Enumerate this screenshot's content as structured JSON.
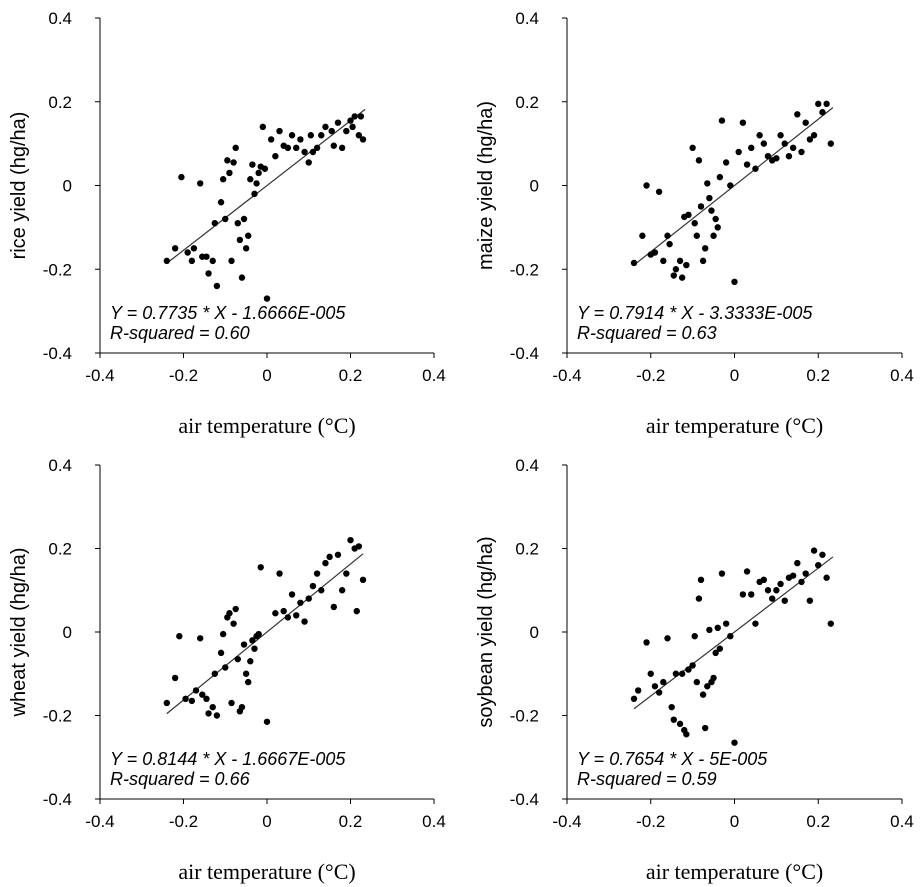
{
  "chart_data": [
    {
      "type": "scatter",
      "title": "",
      "xlabel": "air temperature (°C)",
      "ylabel": "rice yield (hg/ha)",
      "xlim": [
        -0.4,
        0.4
      ],
      "ylim": [
        -0.4,
        0.4
      ],
      "xticks": [
        "-0.4",
        "-0.2",
        "0",
        "0.2",
        "0.4"
      ],
      "yticks": [
        "0.4",
        "0.2",
        "0",
        "-0.2",
        "-0.4"
      ],
      "equation": "Y = 0.7735 * X - 1.6666E-005",
      "r_squared": "R-squared = 0.60",
      "fit": {
        "slope": 0.7735,
        "intercept": -1.6666e-05,
        "x_range": [
          -0.24,
          0.235
        ]
      },
      "points": [
        [
          -0.24,
          -0.18
        ],
        [
          -0.22,
          -0.15
        ],
        [
          -0.205,
          0.02
        ],
        [
          -0.19,
          -0.16
        ],
        [
          -0.18,
          -0.18
        ],
        [
          -0.175,
          -0.15
        ],
        [
          -0.16,
          0.005
        ],
        [
          -0.155,
          -0.17
        ],
        [
          -0.145,
          -0.17
        ],
        [
          -0.14,
          -0.21
        ],
        [
          -0.13,
          -0.18
        ],
        [
          -0.125,
          -0.09
        ],
        [
          -0.12,
          -0.24
        ],
        [
          -0.11,
          -0.04
        ],
        [
          -0.105,
          0.015
        ],
        [
          -0.1,
          -0.08
        ],
        [
          -0.095,
          0.06
        ],
        [
          -0.09,
          0.03
        ],
        [
          -0.085,
          -0.18
        ],
        [
          -0.08,
          0.055
        ],
        [
          -0.075,
          0.09
        ],
        [
          -0.07,
          -0.09
        ],
        [
          -0.065,
          -0.13
        ],
        [
          -0.06,
          -0.22
        ],
        [
          -0.055,
          -0.08
        ],
        [
          -0.05,
          -0.15
        ],
        [
          -0.045,
          -0.12
        ],
        [
          -0.04,
          0.015
        ],
        [
          -0.035,
          0.05
        ],
        [
          -0.03,
          -0.02
        ],
        [
          -0.025,
          0.005
        ],
        [
          -0.02,
          0.03
        ],
        [
          -0.015,
          0.045
        ],
        [
          -0.01,
          0.14
        ],
        [
          -0.005,
          0.04
        ],
        [
          0.0,
          -0.27
        ],
        [
          0.01,
          0.11
        ],
        [
          0.02,
          0.07
        ],
        [
          0.03,
          0.13
        ],
        [
          0.04,
          0.095
        ],
        [
          0.05,
          0.09
        ],
        [
          0.06,
          0.12
        ],
        [
          0.07,
          0.09
        ],
        [
          0.08,
          0.11
        ],
        [
          0.09,
          0.08
        ],
        [
          0.1,
          0.055
        ],
        [
          0.105,
          0.12
        ],
        [
          0.11,
          0.08
        ],
        [
          0.12,
          0.09
        ],
        [
          0.13,
          0.12
        ],
        [
          0.14,
          0.14
        ],
        [
          0.155,
          0.13
        ],
        [
          0.16,
          0.095
        ],
        [
          0.17,
          0.15
        ],
        [
          0.18,
          0.09
        ],
        [
          0.19,
          0.13
        ],
        [
          0.2,
          0.155
        ],
        [
          0.205,
          0.14
        ],
        [
          0.21,
          0.165
        ],
        [
          0.22,
          0.12
        ],
        [
          0.225,
          0.165
        ],
        [
          0.23,
          0.11
        ]
      ]
    },
    {
      "type": "scatter",
      "title": "",
      "xlabel": "air temperature (°C)",
      "ylabel": "maize yield (hg/ha)",
      "xlim": [
        -0.4,
        0.4
      ],
      "ylim": [
        -0.4,
        0.4
      ],
      "xticks": [
        "-0.4",
        "-0.2",
        "0",
        "0.2",
        "0.4"
      ],
      "yticks": [
        "0.4",
        "0.2",
        "0",
        "-0.2",
        "-0.4"
      ],
      "equation": "Y = 0.7914 * X - 3.3333E-005",
      "r_squared": "R-squared = 0.63",
      "fit": {
        "slope": 0.7914,
        "intercept": -3.3333e-05,
        "x_range": [
          -0.24,
          0.235
        ]
      },
      "points": [
        [
          -0.24,
          -0.185
        ],
        [
          -0.22,
          -0.12
        ],
        [
          -0.21,
          0.0
        ],
        [
          -0.2,
          -0.165
        ],
        [
          -0.19,
          -0.16
        ],
        [
          -0.18,
          -0.015
        ],
        [
          -0.17,
          -0.18
        ],
        [
          -0.16,
          -0.12
        ],
        [
          -0.155,
          -0.14
        ],
        [
          -0.145,
          -0.215
        ],
        [
          -0.14,
          -0.2
        ],
        [
          -0.13,
          -0.18
        ],
        [
          -0.125,
          -0.22
        ],
        [
          -0.12,
          -0.075
        ],
        [
          -0.115,
          -0.19
        ],
        [
          -0.11,
          -0.07
        ],
        [
          -0.1,
          0.09
        ],
        [
          -0.095,
          -0.09
        ],
        [
          -0.09,
          -0.12
        ],
        [
          -0.085,
          0.06
        ],
        [
          -0.08,
          -0.05
        ],
        [
          -0.075,
          -0.18
        ],
        [
          -0.07,
          -0.15
        ],
        [
          -0.065,
          0.005
        ],
        [
          -0.06,
          -0.03
        ],
        [
          -0.055,
          -0.06
        ],
        [
          -0.05,
          -0.12
        ],
        [
          -0.045,
          -0.08
        ],
        [
          -0.04,
          -0.1
        ],
        [
          -0.035,
          0.02
        ],
        [
          -0.03,
          0.155
        ],
        [
          -0.02,
          0.055
        ],
        [
          -0.01,
          0.0
        ],
        [
          0.0,
          -0.23
        ],
        [
          0.01,
          0.08
        ],
        [
          0.02,
          0.15
        ],
        [
          0.03,
          0.05
        ],
        [
          0.04,
          0.09
        ],
        [
          0.05,
          0.04
        ],
        [
          0.06,
          0.12
        ],
        [
          0.07,
          0.1
        ],
        [
          0.08,
          0.07
        ],
        [
          0.09,
          0.06
        ],
        [
          0.1,
          0.065
        ],
        [
          0.11,
          0.12
        ],
        [
          0.12,
          0.1
        ],
        [
          0.13,
          0.07
        ],
        [
          0.14,
          0.09
        ],
        [
          0.15,
          0.17
        ],
        [
          0.16,
          0.08
        ],
        [
          0.17,
          0.15
        ],
        [
          0.18,
          0.11
        ],
        [
          0.19,
          0.12
        ],
        [
          0.2,
          0.195
        ],
        [
          0.21,
          0.175
        ],
        [
          0.22,
          0.195
        ],
        [
          0.23,
          0.1
        ]
      ]
    },
    {
      "type": "scatter",
      "title": "",
      "xlabel": "air temperature (°C)",
      "ylabel": "wheat yield (hg/ha)",
      "xlim": [
        -0.4,
        0.4
      ],
      "ylim": [
        -0.4,
        0.4
      ],
      "xticks": [
        "-0.4",
        "-0.2",
        "0",
        "0.2",
        "0.4"
      ],
      "yticks": [
        "0.4",
        "0.2",
        "0",
        "-0.2",
        "-0.4"
      ],
      "equation": "Y = 0.8144 * X - 1.6667E-005",
      "r_squared": "R-squared = 0.66",
      "fit": {
        "slope": 0.8144,
        "intercept": -1.6667e-05,
        "x_range": [
          -0.24,
          0.23
        ]
      },
      "points": [
        [
          -0.24,
          -0.17
        ],
        [
          -0.22,
          -0.11
        ],
        [
          -0.21,
          -0.01
        ],
        [
          -0.195,
          -0.16
        ],
        [
          -0.18,
          -0.165
        ],
        [
          -0.17,
          -0.14
        ],
        [
          -0.16,
          -0.015
        ],
        [
          -0.155,
          -0.15
        ],
        [
          -0.145,
          -0.16
        ],
        [
          -0.14,
          -0.195
        ],
        [
          -0.13,
          -0.18
        ],
        [
          -0.125,
          -0.1
        ],
        [
          -0.12,
          -0.2
        ],
        [
          -0.11,
          -0.05
        ],
        [
          -0.105,
          -0.005
        ],
        [
          -0.1,
          -0.085
        ],
        [
          -0.095,
          0.035
        ],
        [
          -0.09,
          0.045
        ],
        [
          -0.085,
          -0.17
        ],
        [
          -0.08,
          0.02
        ],
        [
          -0.075,
          0.055
        ],
        [
          -0.07,
          -0.065
        ],
        [
          -0.065,
          -0.19
        ],
        [
          -0.06,
          -0.18
        ],
        [
          -0.055,
          -0.03
        ],
        [
          -0.05,
          -0.1
        ],
        [
          -0.045,
          -0.12
        ],
        [
          -0.04,
          -0.07
        ],
        [
          -0.035,
          -0.02
        ],
        [
          -0.03,
          -0.04
        ],
        [
          -0.025,
          -0.01
        ],
        [
          -0.02,
          -0.005
        ],
        [
          -0.015,
          0.155
        ],
        [
          0.0,
          -0.215
        ],
        [
          0.02,
          0.045
        ],
        [
          0.03,
          0.14
        ],
        [
          0.04,
          0.05
        ],
        [
          0.05,
          0.035
        ],
        [
          0.06,
          0.09
        ],
        [
          0.07,
          0.04
        ],
        [
          0.08,
          0.07
        ],
        [
          0.09,
          0.025
        ],
        [
          0.1,
          0.08
        ],
        [
          0.11,
          0.11
        ],
        [
          0.12,
          0.14
        ],
        [
          0.13,
          0.1
        ],
        [
          0.14,
          0.165
        ],
        [
          0.15,
          0.18
        ],
        [
          0.16,
          0.06
        ],
        [
          0.17,
          0.185
        ],
        [
          0.18,
          0.1
        ],
        [
          0.19,
          0.14
        ],
        [
          0.2,
          0.22
        ],
        [
          0.21,
          0.2
        ],
        [
          0.215,
          0.05
        ],
        [
          0.22,
          0.205
        ],
        [
          0.23,
          0.125
        ]
      ]
    },
    {
      "type": "scatter",
      "title": "",
      "xlabel": "air temperature (°C)",
      "ylabel": "soybean yield (hg/ha)",
      "xlim": [
        -0.4,
        0.4
      ],
      "ylim": [
        -0.4,
        0.4
      ],
      "xticks": [
        "-0.4",
        "-0.2",
        "0",
        "0.2",
        "0.4"
      ],
      "yticks": [
        "0.4",
        "0.2",
        "0",
        "-0.2",
        "-0.4"
      ],
      "equation": "Y = 0.7654 * X - 5E-005",
      "r_squared": "R-squared = 0.59",
      "fit": {
        "slope": 0.7654,
        "intercept": -5e-05,
        "x_range": [
          -0.24,
          0.235
        ]
      },
      "points": [
        [
          -0.24,
          -0.16
        ],
        [
          -0.23,
          -0.14
        ],
        [
          -0.21,
          -0.025
        ],
        [
          -0.2,
          -0.1
        ],
        [
          -0.19,
          -0.13
        ],
        [
          -0.18,
          -0.145
        ],
        [
          -0.17,
          -0.12
        ],
        [
          -0.16,
          -0.015
        ],
        [
          -0.15,
          -0.18
        ],
        [
          -0.145,
          -0.21
        ],
        [
          -0.14,
          -0.1
        ],
        [
          -0.13,
          -0.22
        ],
        [
          -0.125,
          -0.1
        ],
        [
          -0.12,
          -0.235
        ],
        [
          -0.115,
          -0.245
        ],
        [
          -0.11,
          -0.09
        ],
        [
          -0.1,
          -0.08
        ],
        [
          -0.095,
          -0.01
        ],
        [
          -0.09,
          -0.12
        ],
        [
          -0.085,
          0.08
        ],
        [
          -0.08,
          0.125
        ],
        [
          -0.075,
          -0.15
        ],
        [
          -0.07,
          -0.23
        ],
        [
          -0.065,
          -0.13
        ],
        [
          -0.06,
          0.005
        ],
        [
          -0.055,
          -0.12
        ],
        [
          -0.05,
          -0.11
        ],
        [
          -0.045,
          -0.05
        ],
        [
          -0.04,
          0.01
        ],
        [
          -0.035,
          -0.04
        ],
        [
          -0.03,
          0.14
        ],
        [
          -0.02,
          0.02
        ],
        [
          -0.01,
          -0.01
        ],
        [
          0.0,
          -0.265
        ],
        [
          0.02,
          0.09
        ],
        [
          0.03,
          0.145
        ],
        [
          0.04,
          0.09
        ],
        [
          0.05,
          0.02
        ],
        [
          0.06,
          0.12
        ],
        [
          0.07,
          0.125
        ],
        [
          0.08,
          0.1
        ],
        [
          0.09,
          0.08
        ],
        [
          0.1,
          0.1
        ],
        [
          0.11,
          0.115
        ],
        [
          0.12,
          0.075
        ],
        [
          0.13,
          0.13
        ],
        [
          0.14,
          0.135
        ],
        [
          0.15,
          0.165
        ],
        [
          0.16,
          0.12
        ],
        [
          0.17,
          0.14
        ],
        [
          0.18,
          0.075
        ],
        [
          0.19,
          0.195
        ],
        [
          0.2,
          0.16
        ],
        [
          0.21,
          0.185
        ],
        [
          0.22,
          0.13
        ],
        [
          0.23,
          0.02
        ]
      ]
    }
  ]
}
